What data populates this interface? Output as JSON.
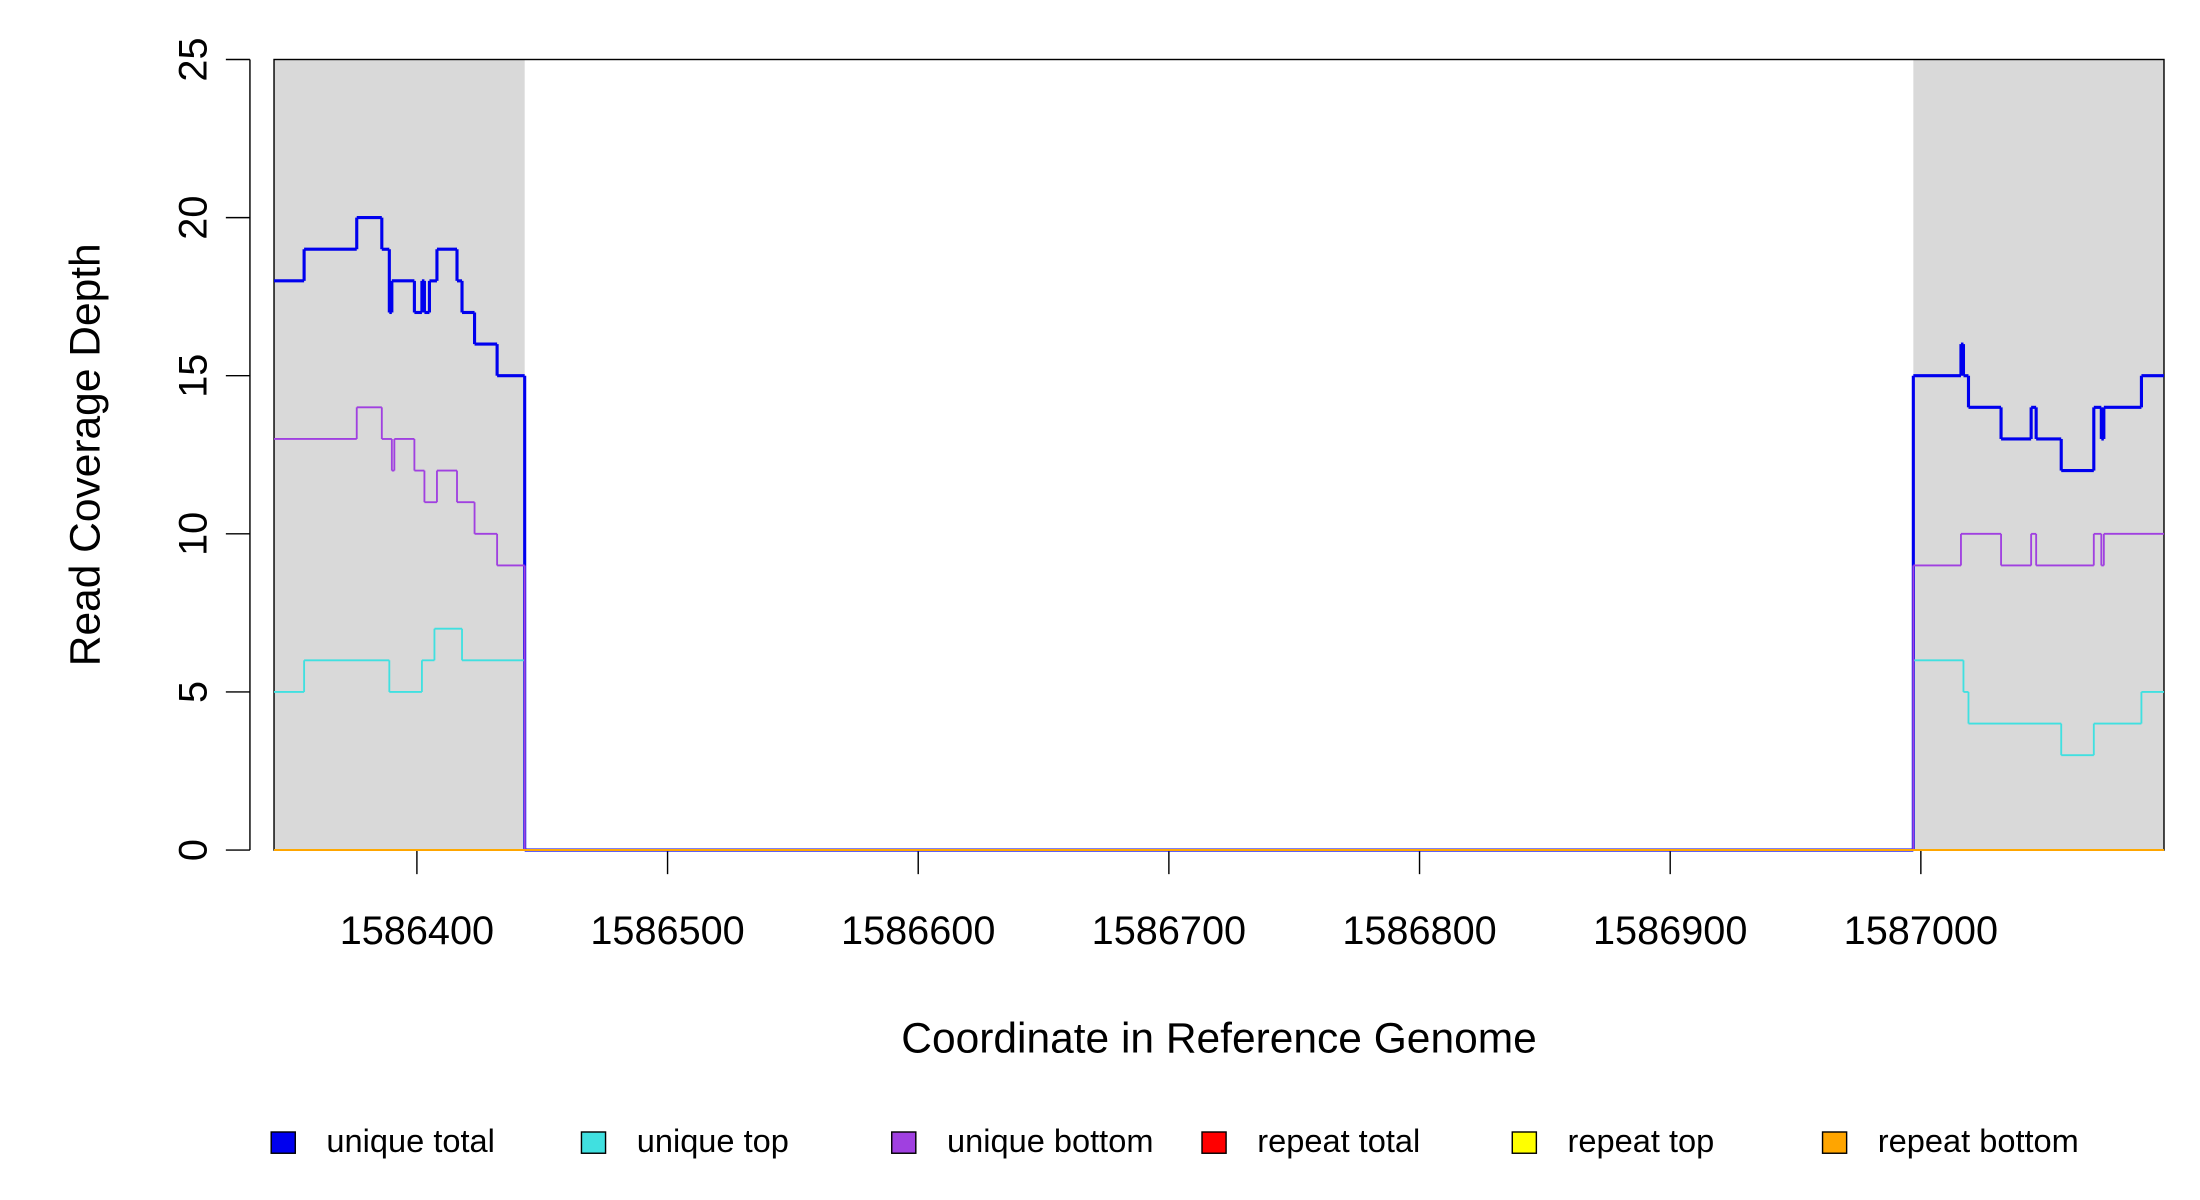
{
  "chart_data": {
    "type": "step",
    "xlabel": "Coordinate in Reference Genome",
    "ylabel": "Read Coverage Depth",
    "xlim": [
      1586343,
      1587097
    ],
    "ylim": [
      0,
      25
    ],
    "xticks": [
      1586400,
      1586500,
      1586600,
      1586700,
      1586800,
      1586900,
      1587000
    ],
    "yticks": [
      0,
      5,
      10,
      15,
      20,
      25
    ],
    "shaded_regions": [
      [
        1586343,
        1586443
      ],
      [
        1586997,
        1587097
      ]
    ],
    "shade_color": "#d9d9d9",
    "legend": "bottom",
    "series": [
      {
        "name": "unique total",
        "color": "#0000ee",
        "x": [
          1586343,
          1586355,
          1586376,
          1586386,
          1586389,
          1586390,
          1586399,
          1586402,
          1586403,
          1586405,
          1586408,
          1586416,
          1586418,
          1586423,
          1586432,
          1586443,
          1586997,
          1587016,
          1587017,
          1587019,
          1587032,
          1587044,
          1587046,
          1587056,
          1587069,
          1587072,
          1587073,
          1587088
        ],
        "values": [
          18,
          19,
          20,
          19,
          17,
          18,
          17,
          18,
          17,
          18,
          19,
          18,
          17,
          16,
          15,
          0,
          15,
          16,
          15,
          14,
          13,
          14,
          13,
          12,
          14,
          13,
          14,
          15
        ]
      },
      {
        "name": "unique top",
        "color": "#40e0e0",
        "x": [
          1586343,
          1586355,
          1586389,
          1586402,
          1586407,
          1586418,
          1586443,
          1586997,
          1587017,
          1587019,
          1587056,
          1587069,
          1587088
        ],
        "values": [
          5,
          6,
          5,
          6,
          7,
          6,
          0,
          6,
          5,
          4,
          3,
          4,
          5
        ]
      },
      {
        "name": "unique bottom",
        "color": "#a040e0",
        "x": [
          1586343,
          1586376,
          1586386,
          1586390,
          1586391,
          1586399,
          1586403,
          1586408,
          1586416,
          1586423,
          1586432,
          1586443,
          1586997,
          1587016,
          1587032,
          1587044,
          1587046,
          1587069,
          1587072,
          1587073
        ],
        "values": [
          13,
          14,
          13,
          12,
          13,
          12,
          11,
          12,
          11,
          10,
          9,
          0,
          9,
          10,
          9,
          10,
          9,
          10,
          9,
          10
        ]
      },
      {
        "name": "repeat total",
        "color": "#ff0000",
        "x": [
          1586343
        ],
        "values": [
          0
        ]
      },
      {
        "name": "repeat top",
        "color": "#ffff00",
        "x": [
          1586343
        ],
        "values": [
          0
        ]
      },
      {
        "name": "repeat bottom",
        "color": "#ffa500",
        "x": [
          1586343
        ],
        "values": [
          0
        ]
      }
    ]
  }
}
